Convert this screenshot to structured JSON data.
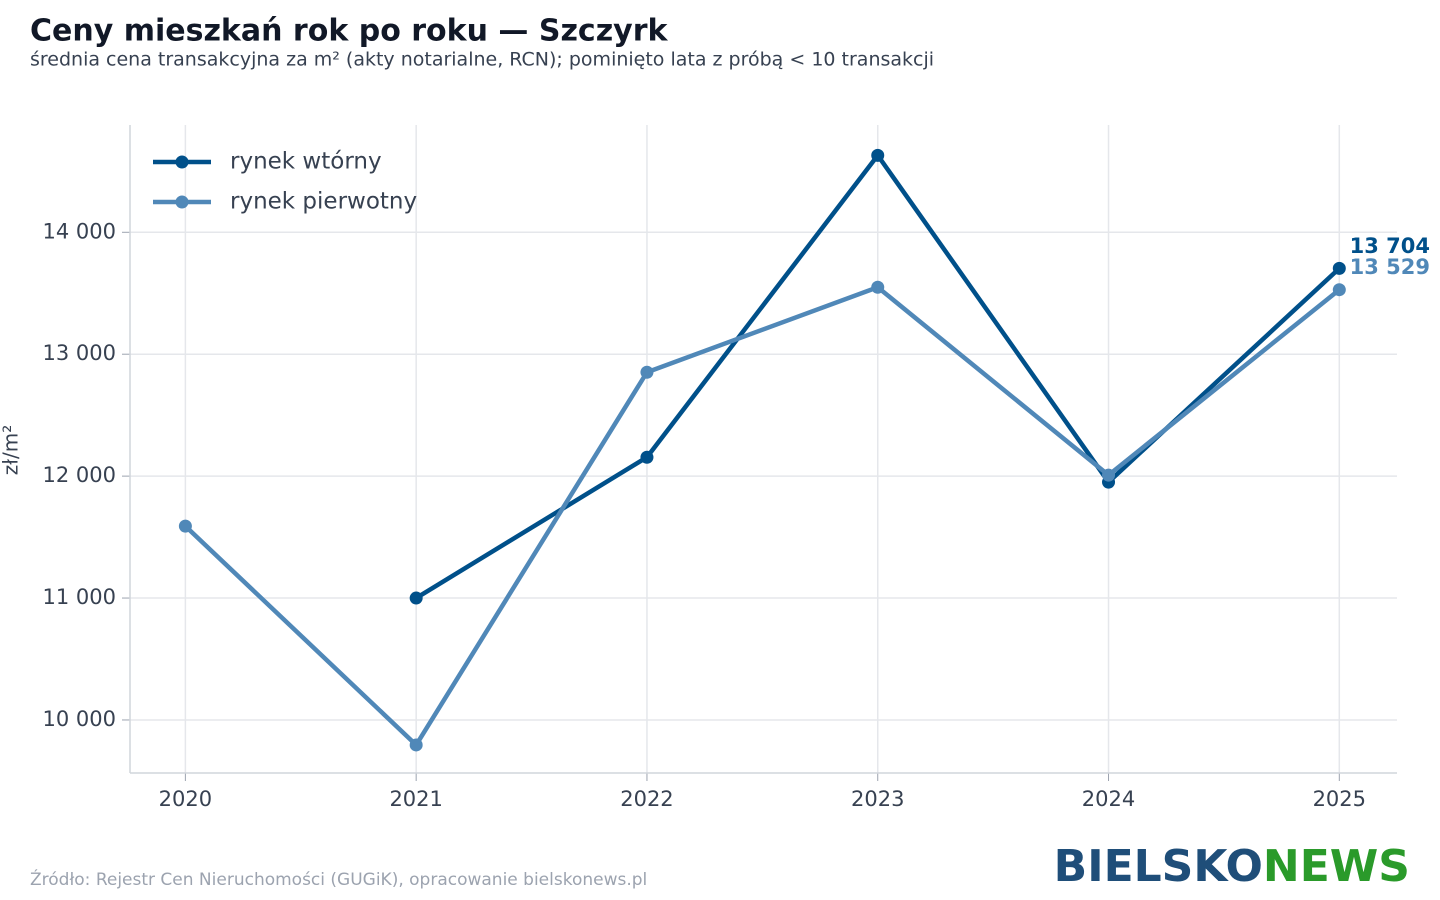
{
  "chart_data": {
    "type": "line",
    "title": "Ceny mieszkań rok po roku — Szczyrk",
    "subtitle": "średnia cena transakcyjna za m² (akty notarialne, RCN); pominięto lata z próbą < 10 transakcji",
    "y_label": "zł/m²",
    "x": [
      2020,
      2021,
      2022,
      2023,
      2024,
      2025
    ],
    "xlim": [
      2019.76,
      2025.25
    ],
    "xticks": [
      2020,
      2021,
      2022,
      2023,
      2024,
      2025
    ],
    "ylim": [
      9565,
      14880
    ],
    "yticks": [
      {
        "value": 10000,
        "label": "10 000"
      },
      {
        "value": 11000,
        "label": "11 000"
      },
      {
        "value": 12000,
        "label": "12 000"
      },
      {
        "value": 13000,
        "label": "13 000"
      },
      {
        "value": 14000,
        "label": "14 000"
      }
    ],
    "grid": true,
    "legend": "upper left",
    "series": [
      {
        "name": "rynek wtórny",
        "color": "#00508a",
        "values": [
          null,
          11000,
          12155,
          14631,
          11951,
          13704
        ],
        "value_labels": [
          null,
          null,
          null,
          null,
          null,
          "13 704"
        ]
      },
      {
        "name": "rynek pierwotny",
        "color": "#5088b8",
        "values": [
          11590,
          9795,
          12852,
          13549,
          12008,
          13529
        ],
        "value_labels": [
          null,
          null,
          null,
          null,
          null,
          "13 529"
        ]
      }
    ],
    "source": "Źródło: Rejestr Cen Nieruchomości (GUGiK), opracowanie bielskonews.pl",
    "logo": [
      "BIELSKO",
      "NEWS"
    ]
  }
}
